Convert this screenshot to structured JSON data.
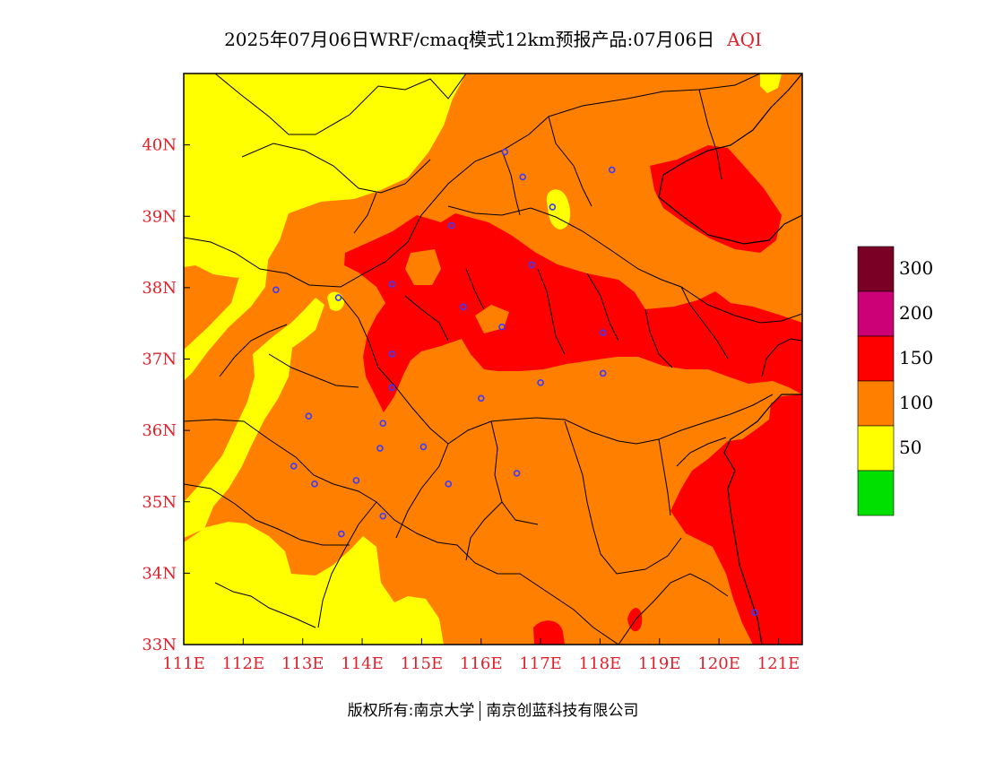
{
  "title": {
    "text": "2025年07月06日WRF/cmaq模式12km预报产品:07月06日",
    "variable": "AQI"
  },
  "axes": {
    "lon_ticks": [
      "111E",
      "112E",
      "113E",
      "114E",
      "115E",
      "116E",
      "117E",
      "118E",
      "119E",
      "120E",
      "121E"
    ],
    "lat_ticks": [
      "33N",
      "34N",
      "35N",
      "36N",
      "37N",
      "38N",
      "39N",
      "40N"
    ],
    "lon_range": [
      111,
      121.4
    ],
    "lat_range": [
      33,
      41
    ]
  },
  "legend": {
    "labels": [
      "300",
      "200",
      "150",
      "100",
      "50"
    ],
    "colors": [
      "#7a0026",
      "#cc0077",
      "#ff0000",
      "#ff7f00",
      "#ffff00",
      "#00e000"
    ]
  },
  "map_colors": {
    "good": "#ffff00",
    "moderate": "#ff7f00",
    "unhealthy": "#ff0000",
    "station": "#3b3bff"
  },
  "stations": [
    {
      "lon": 116.4,
      "lat": 39.9
    },
    {
      "lon": 116.7,
      "lat": 39.55
    },
    {
      "lon": 118.2,
      "lat": 39.65
    },
    {
      "lon": 117.2,
      "lat": 39.13
    },
    {
      "lon": 115.5,
      "lat": 38.87
    },
    {
      "lon": 116.85,
      "lat": 38.32
    },
    {
      "lon": 114.5,
      "lat": 38.05
    },
    {
      "lon": 112.55,
      "lat": 37.97
    },
    {
      "lon": 113.6,
      "lat": 37.86
    },
    {
      "lon": 115.7,
      "lat": 37.73
    },
    {
      "lon": 116.35,
      "lat": 37.45
    },
    {
      "lon": 118.05,
      "lat": 37.37
    },
    {
      "lon": 114.5,
      "lat": 37.07
    },
    {
      "lon": 117.0,
      "lat": 36.67
    },
    {
      "lon": 118.05,
      "lat": 36.8
    },
    {
      "lon": 114.5,
      "lat": 36.6
    },
    {
      "lon": 116.0,
      "lat": 36.45
    },
    {
      "lon": 113.1,
      "lat": 36.2
    },
    {
      "lon": 114.35,
      "lat": 36.1
    },
    {
      "lon": 114.3,
      "lat": 35.75
    },
    {
      "lon": 115.03,
      "lat": 35.77
    },
    {
      "lon": 112.85,
      "lat": 35.5
    },
    {
      "lon": 116.6,
      "lat": 35.4
    },
    {
      "lon": 113.9,
      "lat": 35.3
    },
    {
      "lon": 113.2,
      "lat": 35.25
    },
    {
      "lon": 115.45,
      "lat": 35.25
    },
    {
      "lon": 114.35,
      "lat": 34.8
    },
    {
      "lon": 113.65,
      "lat": 34.55
    },
    {
      "lon": 120.6,
      "lat": 33.45
    }
  ],
  "copyright": {
    "left": "版权所有:南京大学",
    "right": "南京创蓝科技有限公司"
  }
}
